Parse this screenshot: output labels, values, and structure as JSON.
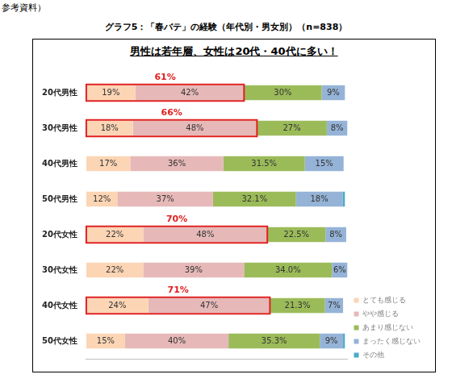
{
  "header": {
    "text": "参考資料）"
  },
  "chart_data": {
    "type": "bar",
    "title": "グラフ5：「春バテ」の経験（年代別・男女別）（n=838）",
    "subtitle": "男性は若年層、女性は20代・40代に多い！",
    "orientation": "horizontal",
    "stacked": true,
    "data_labels": true,
    "tick_labels": "y",
    "grid": false,
    "legend": "bottom-right",
    "xlim": [
      0,
      101
    ],
    "categories": [
      "20代男性",
      "30代男性",
      "40代男性",
      "50代男性",
      "20代女性",
      "30代女性",
      "40代女性",
      "50代女性"
    ],
    "series": [
      {
        "name": "とても感じる",
        "color": "#fcd5b5",
        "values": [
          19,
          18,
          17,
          12,
          22,
          22,
          24,
          15
        ],
        "value_labels": [
          "19%",
          "18%",
          "17%",
          "12%",
          "22%",
          "22%",
          "24%",
          "15%"
        ]
      },
      {
        "name": "やや感じる",
        "color": "#e6b9b8",
        "values": [
          42,
          48,
          36,
          37,
          48,
          39,
          47,
          40
        ],
        "value_labels": [
          "42%",
          "48%",
          "36%",
          "37%",
          "48%",
          "39%",
          "47%",
          "40%"
        ]
      },
      {
        "name": "あまり感じない",
        "color": "#9bbb59",
        "values": [
          30,
          27,
          31.5,
          32.1,
          22.5,
          34.0,
          21.3,
          35.3
        ],
        "value_labels": [
          "30%",
          "27%",
          "31.5%",
          "32.1%",
          "22.5%",
          "34.0%",
          "21.3%",
          "35.3%"
        ]
      },
      {
        "name": "まったく感じない",
        "color": "#95b3d7",
        "values": [
          9,
          8,
          15,
          18,
          8,
          6,
          7,
          9
        ],
        "value_labels": [
          "9%",
          "8%",
          "15%",
          "18%",
          "8%",
          "6%",
          "7%",
          "9%"
        ]
      },
      {
        "name": "その他",
        "color": "#4bacc6",
        "values": [
          0,
          0,
          0,
          0.9,
          0,
          0,
          0,
          0.7
        ],
        "value_labels": [
          null,
          null,
          null,
          null,
          null,
          null,
          null,
          null
        ]
      }
    ],
    "annotations": [
      {
        "category": "20代男性",
        "label": "61%",
        "value": 61
      },
      {
        "category": "30代男性",
        "label": "66%",
        "value": 66
      },
      {
        "category": "20代女性",
        "label": "70%",
        "value": 70
      },
      {
        "category": "40代女性",
        "label": "71%",
        "value": 71
      }
    ]
  }
}
